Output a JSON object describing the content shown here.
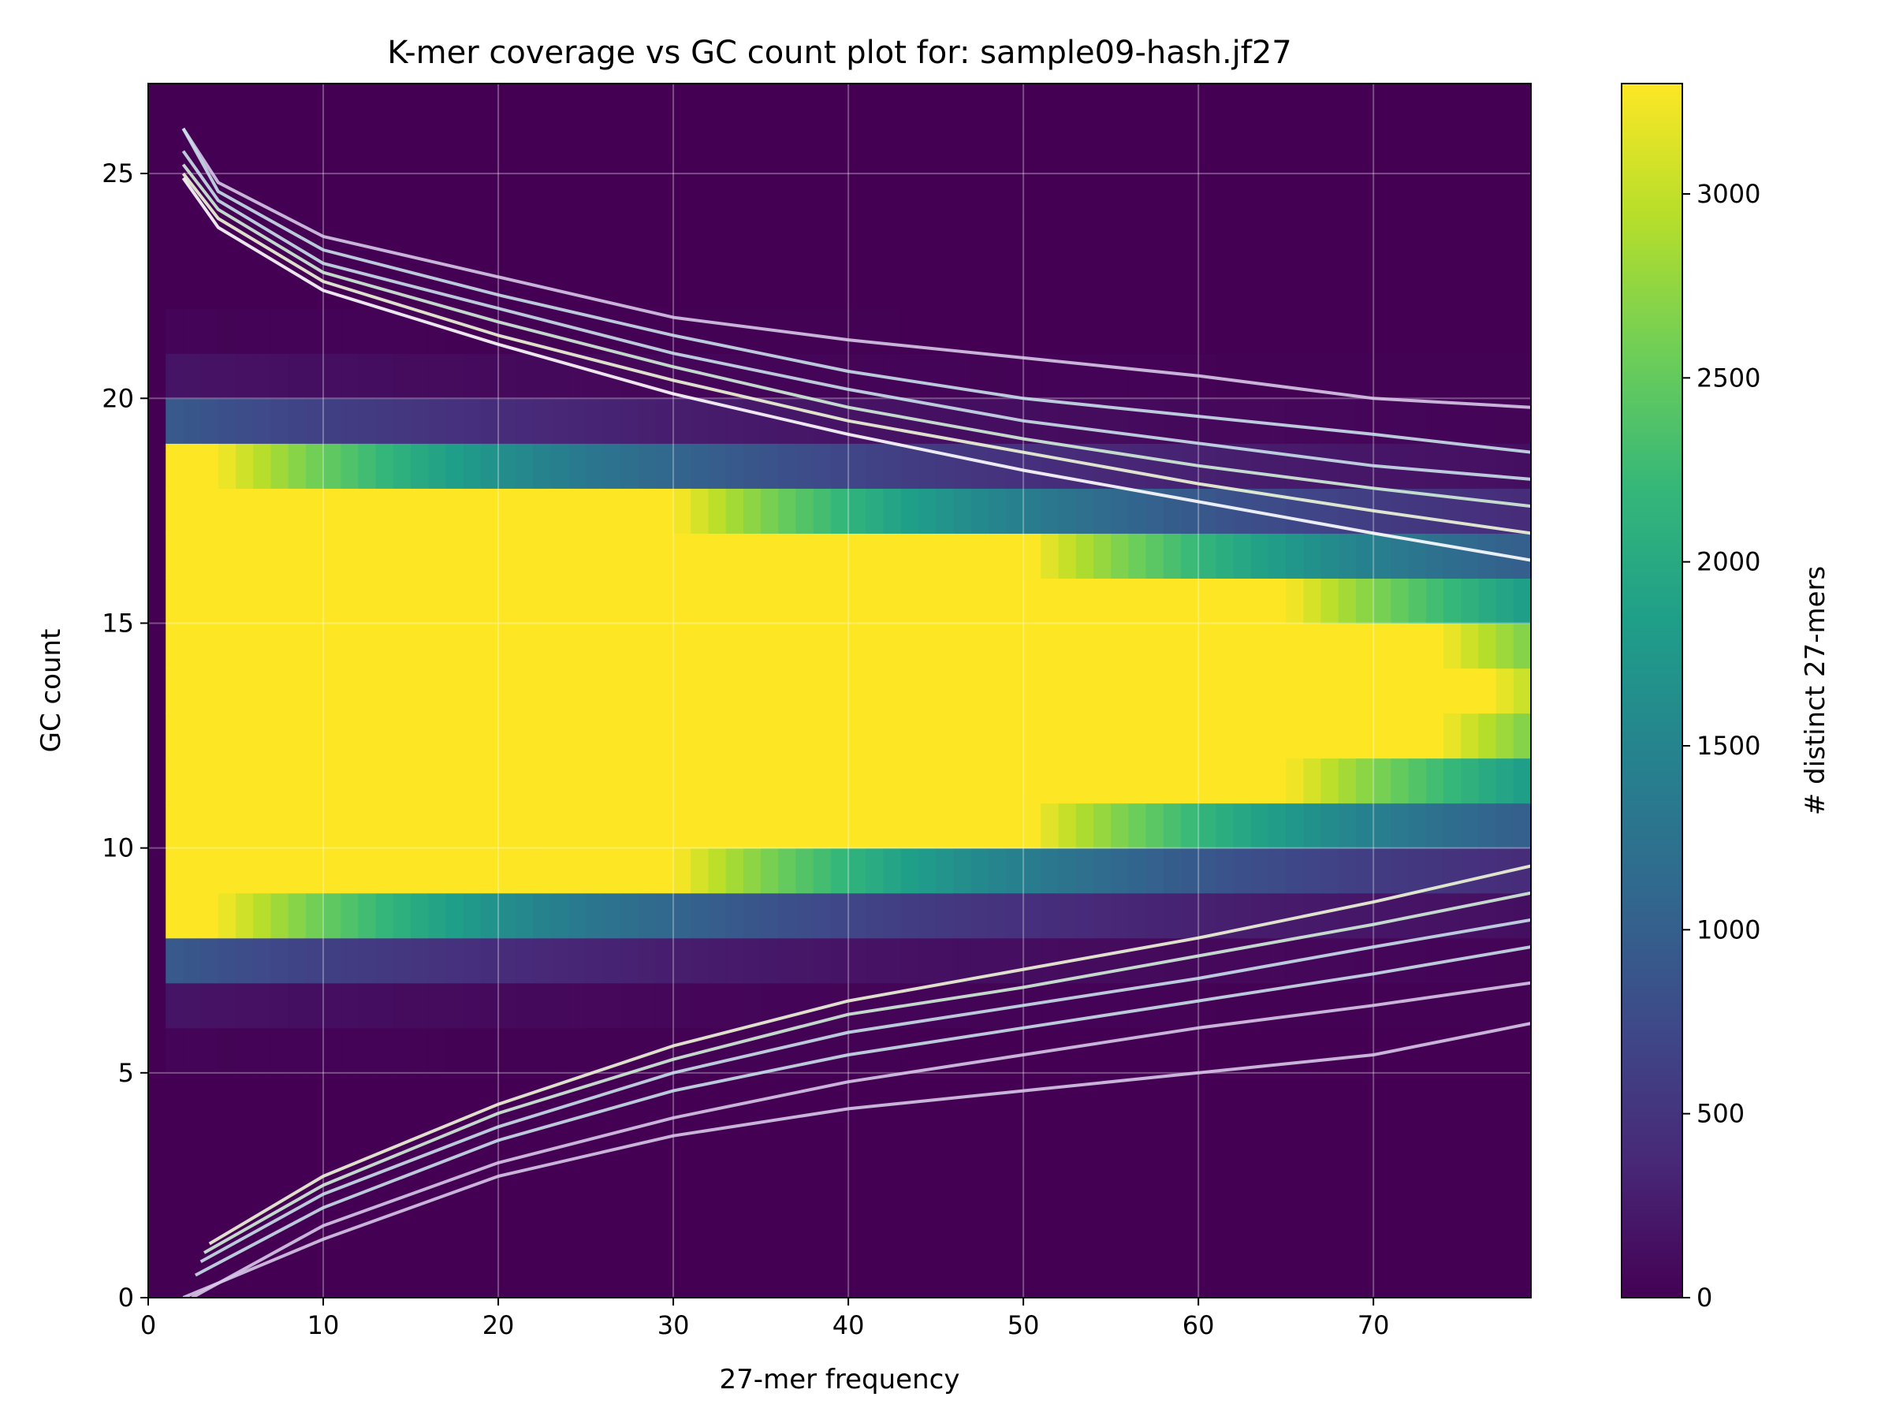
{
  "chart_data": {
    "type": "heatmap",
    "title": "K-mer coverage vs GC count plot for: sample09-hash.jf27",
    "xlabel": "27-mer frequency",
    "ylabel": "GC count",
    "colorbar_label": "# distinct 27-mers",
    "xlim": [
      0,
      79
    ],
    "ylim": [
      0,
      27
    ],
    "x_ticks": [
      0,
      10,
      20,
      30,
      40,
      50,
      60,
      70
    ],
    "y_ticks": [
      0,
      5,
      10,
      15,
      20,
      25
    ],
    "colorbar_ticks": [
      0,
      500,
      1000,
      1500,
      2000,
      2500,
      3000
    ],
    "colorbar_range": [
      0,
      3300
    ],
    "colormap": "viridis",
    "colormap_stops": [
      "#440154",
      "#482878",
      "#3e4989",
      "#31688e",
      "#26828e",
      "#1f9e89",
      "#35b779",
      "#6ece58",
      "#b5de2b",
      "#fde725"
    ],
    "grid": true,
    "gc_distribution": {
      "mean": 13.5,
      "sd": 2.0,
      "peak": 83000,
      "decay_per_unit_x": 0.958
    },
    "contour_levels": [
      {
        "level": "outer",
        "color": "#d8c8e8",
        "points": [
          [
            2,
            0
          ],
          [
            10,
            1.3
          ],
          [
            20,
            2.7
          ],
          [
            30,
            3.6
          ],
          [
            40,
            4.2
          ],
          [
            50,
            4.6
          ],
          [
            60,
            5.0
          ],
          [
            70,
            5.4
          ],
          [
            79,
            6.1
          ]
        ]
      },
      {
        "level": "2",
        "color": "#d8c8e8",
        "points": [
          [
            2.5,
            0
          ],
          [
            10,
            1.6
          ],
          [
            20,
            3.0
          ],
          [
            30,
            4.0
          ],
          [
            40,
            4.8
          ],
          [
            50,
            5.4
          ],
          [
            60,
            6.0
          ],
          [
            70,
            6.5
          ],
          [
            79,
            7.0
          ]
        ]
      },
      {
        "level": "3",
        "color": "#c8e0ea",
        "points": [
          [
            2.7,
            0.5
          ],
          [
            10,
            2.0
          ],
          [
            20,
            3.5
          ],
          [
            30,
            4.6
          ],
          [
            40,
            5.4
          ],
          [
            50,
            6.0
          ],
          [
            60,
            6.6
          ],
          [
            70,
            7.2
          ],
          [
            79,
            7.8
          ]
        ]
      },
      {
        "level": "4",
        "color": "#c8e0ea",
        "points": [
          [
            3,
            0.8
          ],
          [
            10,
            2.3
          ],
          [
            20,
            3.8
          ],
          [
            30,
            5.0
          ],
          [
            40,
            5.9
          ],
          [
            50,
            6.5
          ],
          [
            60,
            7.1
          ],
          [
            70,
            7.8
          ],
          [
            79,
            8.4
          ]
        ]
      },
      {
        "level": "5",
        "color": "#d0f0d8",
        "points": [
          [
            3.2,
            1.0
          ],
          [
            10,
            2.5
          ],
          [
            20,
            4.1
          ],
          [
            30,
            5.3
          ],
          [
            40,
            6.3
          ],
          [
            50,
            6.9
          ],
          [
            60,
            7.6
          ],
          [
            70,
            8.3
          ],
          [
            79,
            9.0
          ]
        ]
      },
      {
        "level": "6",
        "color": "#f0f8d8",
        "points": [
          [
            3.5,
            1.2
          ],
          [
            10,
            2.7
          ],
          [
            20,
            4.3
          ],
          [
            30,
            5.6
          ],
          [
            40,
            6.6
          ],
          [
            50,
            7.3
          ],
          [
            60,
            8.0
          ],
          [
            70,
            8.8
          ],
          [
            79,
            9.6
          ]
        ]
      },
      {
        "level": "outer-top",
        "color": "#d8c8e8",
        "points": [
          [
            2,
            26
          ],
          [
            4,
            24.8
          ],
          [
            10,
            23.6
          ],
          [
            20,
            22.7
          ],
          [
            30,
            21.8
          ],
          [
            40,
            21.3
          ],
          [
            50,
            20.9
          ],
          [
            60,
            20.5
          ],
          [
            70,
            20.0
          ],
          [
            79,
            19.8
          ]
        ]
      },
      {
        "level": "2-top",
        "color": "#c8e0ea",
        "points": [
          [
            2,
            26
          ],
          [
            4,
            24.6
          ],
          [
            10,
            23.3
          ],
          [
            20,
            22.3
          ],
          [
            30,
            21.4
          ],
          [
            40,
            20.6
          ],
          [
            50,
            20.0
          ],
          [
            60,
            19.6
          ],
          [
            70,
            19.2
          ],
          [
            79,
            18.8
          ]
        ]
      },
      {
        "level": "3-top",
        "color": "#c8e0ea",
        "points": [
          [
            2,
            25.5
          ],
          [
            4,
            24.4
          ],
          [
            10,
            23.0
          ],
          [
            20,
            22.0
          ],
          [
            30,
            21.0
          ],
          [
            40,
            20.2
          ],
          [
            50,
            19.5
          ],
          [
            60,
            19.0
          ],
          [
            70,
            18.5
          ],
          [
            79,
            18.2
          ]
        ]
      },
      {
        "level": "4-top",
        "color": "#d0f0d8",
        "points": [
          [
            2,
            25.2
          ],
          [
            4,
            24.2
          ],
          [
            10,
            22.8
          ],
          [
            20,
            21.7
          ],
          [
            30,
            20.7
          ],
          [
            40,
            19.8
          ],
          [
            50,
            19.1
          ],
          [
            60,
            18.5
          ],
          [
            70,
            18.0
          ],
          [
            79,
            17.6
          ]
        ]
      },
      {
        "level": "5-top",
        "color": "#f0f8d8",
        "points": [
          [
            2,
            25
          ],
          [
            4,
            24.0
          ],
          [
            10,
            22.6
          ],
          [
            20,
            21.4
          ],
          [
            30,
            20.4
          ],
          [
            40,
            19.5
          ],
          [
            50,
            18.8
          ],
          [
            60,
            18.1
          ],
          [
            70,
            17.5
          ],
          [
            79,
            17.0
          ]
        ]
      },
      {
        "level": "6-top",
        "color": "#ffffff",
        "points": [
          [
            2,
            24.9
          ],
          [
            4,
            23.8
          ],
          [
            10,
            22.4
          ],
          [
            20,
            21.2
          ],
          [
            30,
            20.1
          ],
          [
            40,
            19.2
          ],
          [
            50,
            18.4
          ],
          [
            60,
            17.7
          ],
          [
            70,
            17.0
          ],
          [
            79,
            16.4
          ]
        ]
      }
    ]
  }
}
